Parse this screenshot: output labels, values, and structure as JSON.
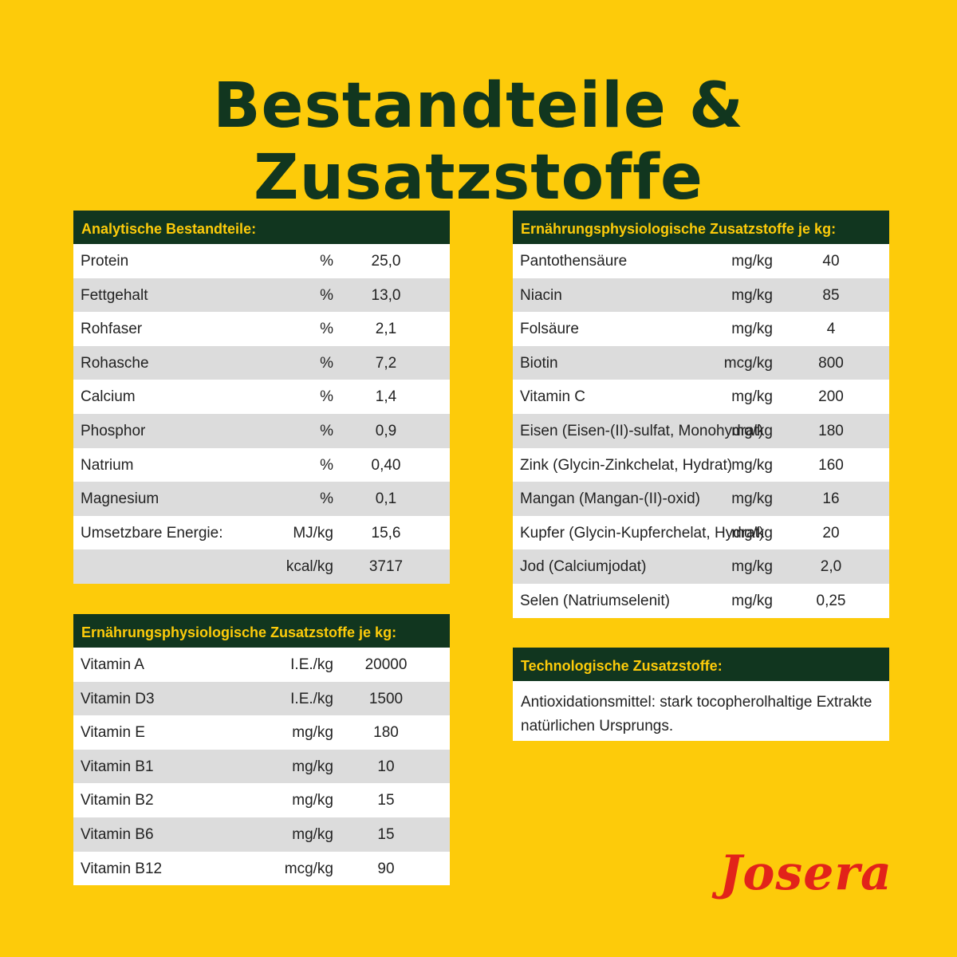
{
  "title": "Bestandteile & Zusatzstoffe",
  "colors": {
    "background": "#FDCB0A",
    "header_bg": "#11361F",
    "header_text": "#FDCB0A",
    "row_alt": "#DCDCDC",
    "logo": "#E2231A"
  },
  "analytic": {
    "header": "Analytische Bestandteile:",
    "rows": [
      {
        "name": "Protein",
        "unit": "%",
        "value": "25,0"
      },
      {
        "name": "Fettgehalt",
        "unit": "%",
        "value": "13,0"
      },
      {
        "name": "Rohfaser",
        "unit": "%",
        "value": "2,1"
      },
      {
        "name": "Rohasche",
        "unit": "%",
        "value": "7,2"
      },
      {
        "name": "Calcium",
        "unit": "%",
        "value": "1,4"
      },
      {
        "name": "Phosphor",
        "unit": "%",
        "value": "0,9"
      },
      {
        "name": "Natrium",
        "unit": "%",
        "value": "0,40"
      },
      {
        "name": "Magnesium",
        "unit": "%",
        "value": "0,1"
      },
      {
        "name": "Umsetzbare Energie:",
        "unit": "MJ/kg",
        "value": "15,6"
      },
      {
        "name": "",
        "unit": "kcal/kg",
        "value": "3717"
      }
    ]
  },
  "vitamins": {
    "header": "Ernährungsphysiologische Zusatzstoffe je kg:",
    "rows": [
      {
        "name": "Vitamin A",
        "unit": "I.E./kg",
        "value": "20000"
      },
      {
        "name": "Vitamin D3",
        "unit": "I.E./kg",
        "value": "1500"
      },
      {
        "name": "Vitamin E",
        "unit": "mg/kg",
        "value": "180"
      },
      {
        "name": "Vitamin B1",
        "unit": "mg/kg",
        "value": "10"
      },
      {
        "name": "Vitamin B2",
        "unit": "mg/kg",
        "value": "15"
      },
      {
        "name": "Vitamin B6",
        "unit": "mg/kg",
        "value": "15"
      },
      {
        "name": "Vitamin B12",
        "unit": "mcg/kg",
        "value": "90"
      }
    ]
  },
  "additives": {
    "header": "Ernährungsphysiologische Zusatzstoffe je kg:",
    "rows": [
      {
        "name": "Pantothensäure",
        "unit": "mg/kg",
        "value": "40"
      },
      {
        "name": "Niacin",
        "unit": "mg/kg",
        "value": "85"
      },
      {
        "name": "Folsäure",
        "unit": "mg/kg",
        "value": "4"
      },
      {
        "name": "Biotin",
        "unit": "mcg/kg",
        "value": "800"
      },
      {
        "name": "Vitamin C",
        "unit": "mg/kg",
        "value": "200"
      },
      {
        "name": "Eisen (Eisen-(II)-sulfat, Monohydrat)",
        "unit": "mg/kg",
        "value": "180"
      },
      {
        "name": "Zink (Glycin-Zinkchelat, Hydrat)",
        "unit": "mg/kg",
        "value": "160"
      },
      {
        "name": "Mangan (Mangan-(II)-oxid)",
        "unit": "mg/kg",
        "value": "16"
      },
      {
        "name": "Kupfer (Glycin-Kupferchelat, Hydrat)",
        "unit": "mg/kg",
        "value": "20"
      },
      {
        "name": "Jod (Calciumjodat)",
        "unit": "mg/kg",
        "value": "2,0"
      },
      {
        "name": "Selen (Natriumselenit)",
        "unit": "mg/kg",
        "value": "0,25"
      }
    ]
  },
  "technological": {
    "header": "Technologische Zusatzstoffe:",
    "text": "Antioxidationsmittel: stark tocopherolhaltige Extrakte natürlichen Ursprungs."
  },
  "logo": {
    "text": "Josera"
  }
}
